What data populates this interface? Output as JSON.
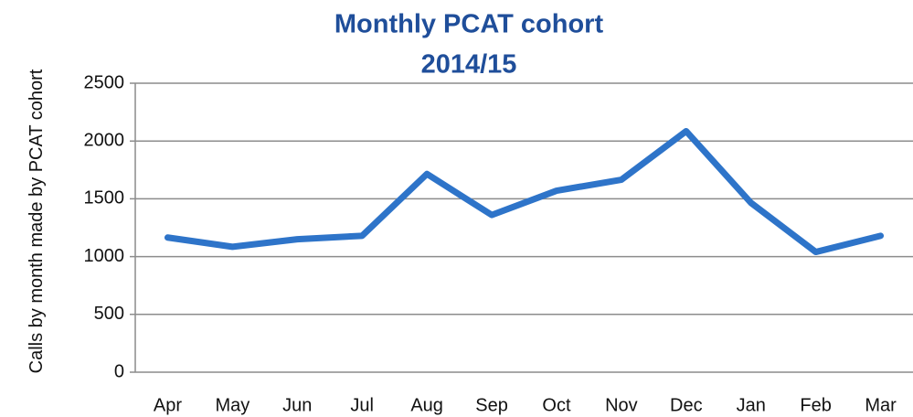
{
  "chart_data": {
    "type": "line",
    "title": "Monthly PCAT cohort",
    "subtitle": "2014/15",
    "y_label": "Calls by month made by PCAT cohort",
    "categories": [
      "Apr",
      "May",
      "Jun",
      "Jul",
      "Aug",
      "Sep",
      "Oct",
      "Nov",
      "Dec",
      "Jan",
      "Feb",
      "Mar"
    ],
    "values": [
      1165,
      1085,
      1150,
      1180,
      1715,
      1360,
      1570,
      1665,
      2085,
      1465,
      1040,
      1180
    ],
    "color": "#2e74c9",
    "ylim": [
      0,
      2500
    ],
    "yticks": [
      0,
      500,
      1000,
      1500,
      2000,
      2500
    ],
    "grid": true
  }
}
